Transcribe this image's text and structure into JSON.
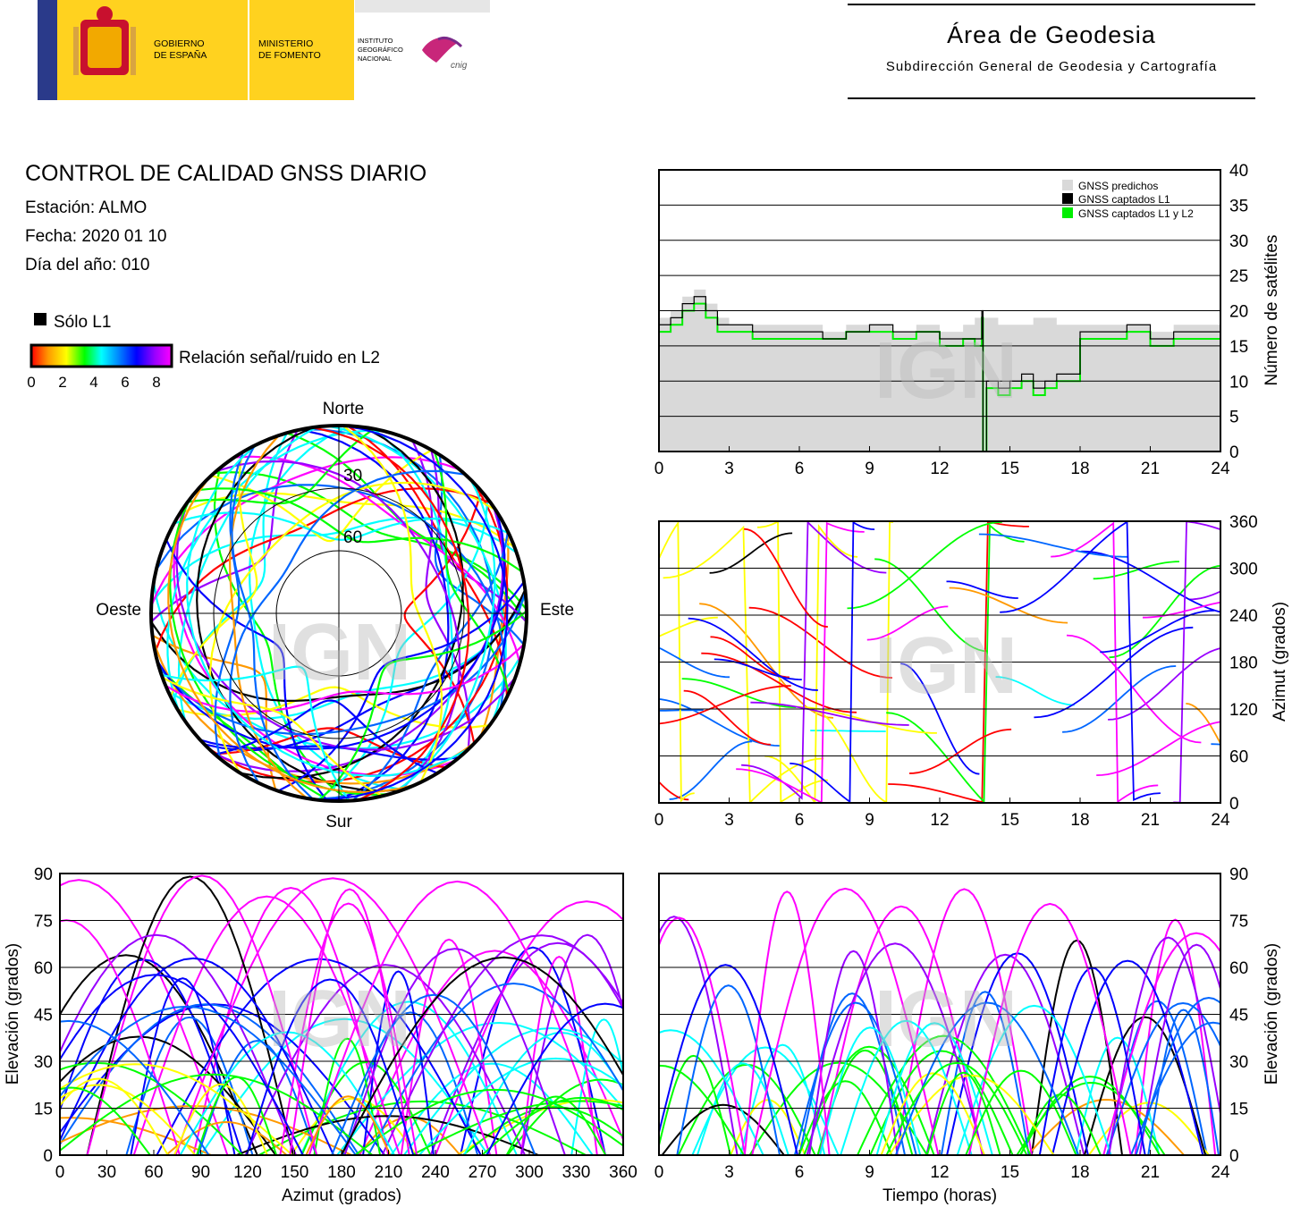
{
  "header": {
    "gov_line1": "GOBIERNO",
    "gov_line2": "DE ESPAÑA",
    "ministry_line1": "MINISTERIO",
    "ministry_line2": "DE FOMENTO",
    "inst_line1": "INSTITUTO",
    "inst_line2": "GEOGRÁFICO",
    "inst_line3": "NACIONAL",
    "inst_logo_text": "cnig",
    "area_title": "Área de Geodesia",
    "area_subtitle": "Subdirección General de Geodesia y Cartografía"
  },
  "report": {
    "title": "CONTROL DE CALIDAD GNSS DIARIO",
    "station": "Estación: ALMO",
    "date": "Fecha: 2020 01 10",
    "doy": "Día del año: 010"
  },
  "colors": {
    "predicted": "#d9d9d9",
    "l1": "#000000",
    "l1l2": "#00ee00",
    "snr_scale": [
      "#ff0000",
      "#ff9900",
      "#ffff00",
      "#00ff00",
      "#00ffff",
      "#0066ff",
      "#0000ff",
      "#9900ff",
      "#ff00ff"
    ]
  },
  "legend": {
    "only_l1": "Sólo L1",
    "snr_label": "Relación señal/ruido en L2",
    "snr_ticks": [
      "0",
      "2",
      "4",
      "6",
      "8"
    ]
  },
  "watermark": "IGN",
  "chart_data": [
    {
      "id": "num_sats",
      "type": "area",
      "x_ticks": [
        "0",
        "3",
        "6",
        "9",
        "12",
        "15",
        "18",
        "21",
        "24"
      ],
      "y_ticks": [
        "0",
        "5",
        "10",
        "15",
        "20",
        "25",
        "30",
        "35",
        "40"
      ],
      "ylabel": "Número de satélites",
      "xlim": [
        0,
        24
      ],
      "ylim": [
        0,
        40
      ],
      "legend": [
        "GNSS predichos",
        "GNSS captados L1",
        "GNSS captados L1 y L2"
      ],
      "legend_position": "top-right",
      "series": [
        {
          "name": "GNSS predichos",
          "x": [
            0,
            0.5,
            1,
            1.5,
            2,
            2.5,
            3,
            4,
            5,
            6,
            7,
            8,
            9,
            10,
            11,
            12,
            13,
            13.5,
            14,
            14.5,
            15,
            16,
            17,
            18,
            19,
            20,
            21,
            22,
            23,
            24
          ],
          "values": [
            19,
            20,
            22,
            23,
            21,
            19,
            18,
            18,
            18,
            18,
            17,
            18,
            18,
            17,
            18,
            17,
            18,
            19,
            19,
            18,
            18,
            19,
            18,
            18,
            18,
            18,
            17,
            18,
            18,
            18
          ]
        },
        {
          "name": "GNSS captados L1",
          "x": [
            0,
            0.5,
            1,
            1.5,
            2,
            2.5,
            3,
            4,
            5,
            6,
            7,
            8,
            9,
            10,
            11,
            12,
            13,
            13.5,
            13.8,
            13.85,
            14,
            14.5,
            15,
            15.5,
            16,
            16.5,
            17,
            17.5,
            18,
            19,
            20,
            21,
            22,
            23,
            24
          ],
          "values": [
            18,
            19,
            21,
            22,
            20,
            18,
            18,
            17,
            17,
            17,
            16,
            17,
            18,
            17,
            17,
            16,
            16,
            16,
            20,
            0,
            10,
            9,
            10,
            11,
            9,
            10,
            11,
            11,
            17,
            17,
            18,
            16,
            17,
            17,
            16
          ]
        },
        {
          "name": "GNSS captados L1 y L2",
          "x": [
            0,
            0.5,
            1,
            1.5,
            2,
            2.5,
            3,
            4,
            5,
            6,
            7,
            8,
            9,
            10,
            11,
            12,
            13,
            13.5,
            13.8,
            13.85,
            14,
            14.5,
            15,
            15.5,
            16,
            16.5,
            17,
            17.5,
            18,
            19,
            20,
            21,
            22,
            23,
            24
          ],
          "values": [
            17,
            18,
            20,
            21,
            19,
            17,
            17,
            16,
            16,
            16,
            16,
            17,
            17,
            16,
            17,
            15,
            16,
            15,
            19,
            0,
            9,
            8,
            9,
            10,
            8,
            9,
            10,
            10,
            16,
            16,
            17,
            15,
            16,
            16,
            15
          ]
        }
      ]
    },
    {
      "id": "skyplot",
      "type": "scatter",
      "compass": {
        "north": "Norte",
        "south": "Sur",
        "east": "Este",
        "west": "Oeste"
      },
      "ring_labels": [
        "30",
        "60"
      ]
    },
    {
      "id": "azimuth_time",
      "type": "line",
      "x_ticks": [
        "0",
        "3",
        "6",
        "9",
        "12",
        "15",
        "18",
        "21",
        "24"
      ],
      "y_ticks": [
        "0",
        "60",
        "120",
        "180",
        "240",
        "300",
        "360"
      ],
      "ylabel": "Azimut (grados)",
      "xlim": [
        0,
        24
      ],
      "ylim": [
        0,
        360
      ]
    },
    {
      "id": "elev_azimuth",
      "type": "line",
      "x_ticks": [
        "0",
        "30",
        "60",
        "90",
        "120",
        "150",
        "180",
        "210",
        "240",
        "270",
        "300",
        "330",
        "360"
      ],
      "y_ticks": [
        "0",
        "15",
        "30",
        "45",
        "60",
        "75",
        "90"
      ],
      "xlabel": "Azimut (grados)",
      "ylabel": "Elevación (grados)",
      "xlim": [
        0,
        360
      ],
      "ylim": [
        0,
        90
      ]
    },
    {
      "id": "elev_time",
      "type": "line",
      "x_ticks": [
        "0",
        "3",
        "6",
        "9",
        "12",
        "15",
        "18",
        "21",
        "24"
      ],
      "y_ticks": [
        "0",
        "15",
        "30",
        "45",
        "60",
        "75",
        "90"
      ],
      "xlabel": "Tiempo (horas)",
      "ylabel": "Elevación (grados)",
      "xlim": [
        0,
        24
      ],
      "ylim": [
        0,
        90
      ]
    }
  ]
}
